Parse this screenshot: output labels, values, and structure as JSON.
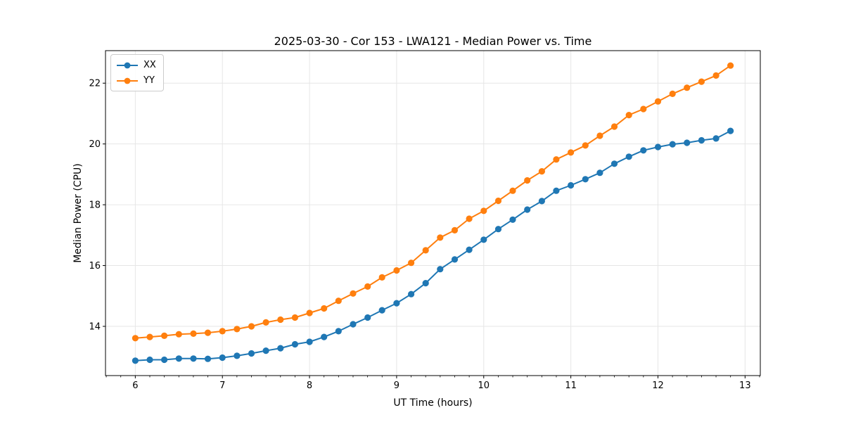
{
  "chart_data": {
    "type": "line",
    "title": "2025-03-30 - Cor 153 - LWA121 - Median Power vs. Time",
    "xlabel": "UT Time (hours)",
    "ylabel": "Median Power (CPU)",
    "xlim": [
      5.658,
      13.175
    ],
    "ylim": [
      12.38,
      23.07
    ],
    "xticks": [
      6,
      7,
      8,
      9,
      10,
      11,
      12,
      13
    ],
    "yticks": [
      14,
      16,
      18,
      20,
      22
    ],
    "x_minor_divisions": 6,
    "grid": true,
    "legend_position": "upper-left",
    "colors": {
      "grid": "#e6e6e6",
      "spine": "#000000",
      "background": "#ffffff"
    },
    "x": [
      6,
      6.167,
      6.333,
      6.5,
      6.667,
      6.833,
      7,
      7.167,
      7.333,
      7.5,
      7.667,
      7.833,
      8,
      8.167,
      8.333,
      8.5,
      8.667,
      8.833,
      9,
      9.167,
      9.333,
      9.5,
      9.667,
      9.833,
      10,
      10.167,
      10.333,
      10.5,
      10.667,
      10.833,
      11,
      11.167,
      11.333,
      11.5,
      11.667,
      11.833,
      12,
      12.167,
      12.333,
      12.5,
      12.667,
      12.833
    ],
    "series": [
      {
        "name": "XX",
        "color": "#1f77b4",
        "marker": "circle",
        "values": [
          12.87,
          12.9,
          12.9,
          12.94,
          12.94,
          12.93,
          12.97,
          13.03,
          13.11,
          13.2,
          13.28,
          13.41,
          13.49,
          13.65,
          13.84,
          14.07,
          14.29,
          14.53,
          14.76,
          15.06,
          15.42,
          15.88,
          16.2,
          16.52,
          16.85,
          17.2,
          17.51,
          17.84,
          18.12,
          18.46,
          18.64,
          18.84,
          19.05,
          19.35,
          19.58,
          19.79,
          19.9,
          19.99,
          20.04,
          20.12,
          20.18,
          20.43
        ]
      },
      {
        "name": "YY",
        "color": "#ff7f0e",
        "marker": "circle",
        "values": [
          13.61,
          13.65,
          13.69,
          13.74,
          13.76,
          13.79,
          13.84,
          13.91,
          14.0,
          14.13,
          14.22,
          14.29,
          14.44,
          14.59,
          14.84,
          15.08,
          15.31,
          15.61,
          15.84,
          16.09,
          16.5,
          16.92,
          17.16,
          17.54,
          17.8,
          18.13,
          18.46,
          18.8,
          19.1,
          19.49,
          19.72,
          19.95,
          20.27,
          20.57,
          20.95,
          21.15,
          21.4,
          21.65,
          21.85,
          22.05,
          22.25,
          22.58
        ]
      }
    ]
  }
}
